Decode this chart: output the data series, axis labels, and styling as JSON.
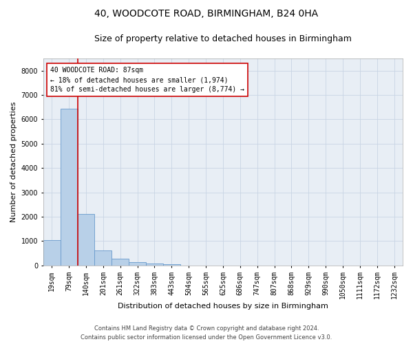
{
  "title_line1": "40, WOODCOTE ROAD, BIRMINGHAM, B24 0HA",
  "title_line2": "Size of property relative to detached houses in Birmingham",
  "xlabel": "Distribution of detached houses by size in Birmingham",
  "ylabel": "Number of detached properties",
  "categories": [
    "19sqm",
    "79sqm",
    "140sqm",
    "201sqm",
    "261sqm",
    "322sqm",
    "383sqm",
    "443sqm",
    "504sqm",
    "565sqm",
    "625sqm",
    "686sqm",
    "747sqm",
    "807sqm",
    "868sqm",
    "929sqm",
    "990sqm",
    "1050sqm",
    "1111sqm",
    "1172sqm",
    "1232sqm"
  ],
  "values": [
    1050,
    6450,
    2100,
    600,
    280,
    130,
    80,
    50,
    0,
    0,
    0,
    0,
    0,
    0,
    0,
    0,
    0,
    0,
    0,
    0,
    0
  ],
  "bar_color": "#b8d0e8",
  "bar_edge_color": "#6699cc",
  "vline_x": 1.5,
  "vline_color": "#cc0000",
  "annotation_text": "40 WOODCOTE ROAD: 87sqm\n← 18% of detached houses are smaller (1,974)\n81% of semi-detached houses are larger (8,774) →",
  "annotation_box_color": "#ffffff",
  "annotation_box_edge_color": "#cc0000",
  "ylim": [
    0,
    8500
  ],
  "yticks": [
    0,
    1000,
    2000,
    3000,
    4000,
    5000,
    6000,
    7000,
    8000
  ],
  "footer_line1": "Contains HM Land Registry data © Crown copyright and database right 2024.",
  "footer_line2": "Contains public sector information licensed under the Open Government Licence v3.0.",
  "background_color": "#ffffff",
  "plot_bg_color": "#e8eef5",
  "grid_color": "#c8d4e4",
  "title1_fontsize": 10,
  "title2_fontsize": 9,
  "label_fontsize": 8,
  "tick_fontsize": 7,
  "footer_fontsize": 6,
  "ann_fontsize": 7
}
